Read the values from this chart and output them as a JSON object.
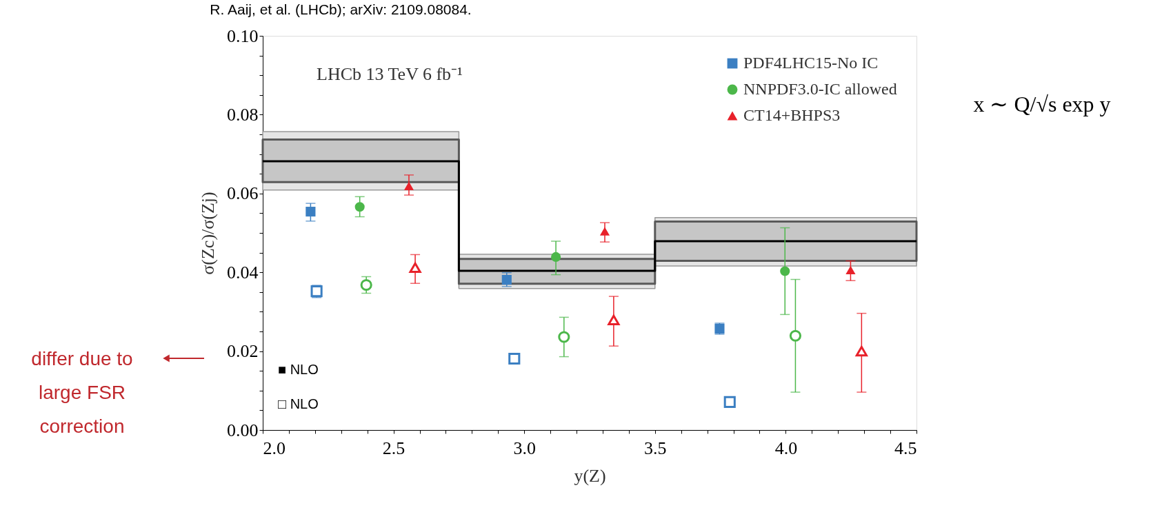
{
  "chart_data": {
    "type": "scatter",
    "title": "R. Aaij, et al. (LHCb); arXiv: 2109.08084.",
    "xlabel": "y(Z)",
    "ylabel": "σ(Zc)/σ(Zj)",
    "xlim": [
      2.0,
      4.5
    ],
    "ylim": [
      0.0,
      0.1
    ],
    "xticks": [
      {
        "value": 2.0,
        "label": "2.0"
      },
      {
        "value": 2.1,
        "label": null
      },
      {
        "value": 2.2,
        "label": null
      },
      {
        "value": 2.3,
        "label": null
      },
      {
        "value": 2.4,
        "label": null
      },
      {
        "value": 2.5,
        "label": "2.5"
      },
      {
        "value": 2.6,
        "label": null
      },
      {
        "value": 2.7,
        "label": null
      },
      {
        "value": 2.8,
        "label": null
      },
      {
        "value": 2.9,
        "label": null
      },
      {
        "value": 3.0,
        "label": "3.0"
      },
      {
        "value": 3.1,
        "label": null
      },
      {
        "value": 3.2,
        "label": null
      },
      {
        "value": 3.3,
        "label": null
      },
      {
        "value": 3.4,
        "label": null
      },
      {
        "value": 3.5,
        "label": "3.5"
      },
      {
        "value": 3.6,
        "label": null
      },
      {
        "value": 3.7,
        "label": null
      },
      {
        "value": 3.8,
        "label": null
      },
      {
        "value": 3.9,
        "label": null
      },
      {
        "value": 4.0,
        "label": "4.0"
      },
      {
        "value": 4.1,
        "label": null
      },
      {
        "value": 4.2,
        "label": null
      },
      {
        "value": 4.3,
        "label": null
      },
      {
        "value": 4.4,
        "label": null
      },
      {
        "value": 4.5,
        "label": "4.5"
      }
    ],
    "yticks": [
      {
        "value": 0.0,
        "label": "0.00"
      },
      {
        "value": 0.005,
        "label": null
      },
      {
        "value": 0.01,
        "label": null
      },
      {
        "value": 0.015,
        "label": null
      },
      {
        "value": 0.02,
        "label": "0.02"
      },
      {
        "value": 0.025,
        "label": null
      },
      {
        "value": 0.03,
        "label": null
      },
      {
        "value": 0.035,
        "label": null
      },
      {
        "value": 0.04,
        "label": "0.04"
      },
      {
        "value": 0.045,
        "label": null
      },
      {
        "value": 0.05,
        "label": null
      },
      {
        "value": 0.055,
        "label": null
      },
      {
        "value": 0.06,
        "label": "0.06"
      },
      {
        "value": 0.065,
        "label": null
      },
      {
        "value": 0.07,
        "label": null
      },
      {
        "value": 0.075,
        "label": null
      },
      {
        "value": 0.08,
        "label": "0.08"
      },
      {
        "value": 0.085,
        "label": null
      },
      {
        "value": 0.09,
        "label": null
      },
      {
        "value": 0.095,
        "label": null
      },
      {
        "value": 0.1,
        "label": "0.10"
      }
    ],
    "grid": false,
    "legend": "top right",
    "series": [
      {
        "type": "step",
        "color": "#999999",
        "x": [
          2.0,
          2.75,
          3.5,
          4.5
        ],
        "values": [
          null,
          null,
          null,
          null
        ],
        "lower": [
          0.0609,
          0.0359,
          0.0416,
          0.0416
        ],
        "upper": [
          0.0757,
          0.0446,
          0.0539,
          0.0539
        ]
      },
      {
        "type": "step",
        "color": "#000000",
        "x": [
          2.0,
          2.75,
          3.5,
          4.5
        ],
        "values": [
          0.0682,
          0.0404,
          0.0479,
          0.0479
        ],
        "lower": [
          0.0629,
          0.0371,
          0.0429,
          0.0429
        ],
        "upper": [
          0.0737,
          0.0434,
          0.0529,
          0.0529
        ]
      },
      {
        "name": "PDF4LHC15-No IC",
        "marker": "square",
        "color": "#3b7fc2",
        "x": [
          2.183,
          2.933,
          3.747
        ],
        "values": [
          0.0554,
          0.0381,
          0.0257
        ],
        "errors": [
          [
            0.053,
            0.0575
          ],
          [
            0.0364,
            0.0399
          ],
          [
            0.0243,
            0.0271
          ]
        ]
      },
      {
        "name": "NNPDF3.0-IC allowed",
        "marker": "circle",
        "color": "#4cb74a",
        "x": [
          2.371,
          3.121,
          3.997
        ],
        "values": [
          0.0566,
          0.0439,
          0.0403
        ],
        "errors": [
          [
            0.0541,
            0.0592
          ],
          [
            0.0394,
            0.0479
          ],
          [
            0.0293,
            0.0513
          ]
        ]
      },
      {
        "name": "CT14+BHPS3",
        "marker": "triangle",
        "color": "#e8212a",
        "x": [
          2.559,
          3.308,
          4.248
        ],
        "values": [
          0.0619,
          0.0504,
          0.0406
        ],
        "errors": [
          [
            0.0596,
            0.0647
          ],
          [
            0.0477,
            0.0526
          ],
          [
            0.0379,
            0.0429
          ]
        ]
      },
      {
        "marker": "square",
        "color": "#3b7fc2",
        "x": [
          2.206,
          2.962,
          3.786
        ],
        "values": [
          0.0352,
          0.0181,
          0.0071
        ],
        "errors": [
          [
            0.0336,
            0.0367
          ],
          null,
          null
        ]
      },
      {
        "marker": "circle",
        "color": "#4cb74a",
        "x": [
          2.396,
          3.152,
          4.037
        ],
        "values": [
          0.0368,
          0.0236,
          0.0239
        ],
        "errors": [
          [
            0.0347,
            0.0389
          ],
          [
            0.0186,
            0.0286
          ],
          [
            0.0096,
            0.0382
          ]
        ]
      },
      {
        "marker": "triangle",
        "color": "#e8212a",
        "x": [
          2.583,
          3.342,
          4.29
        ],
        "values": [
          0.0412,
          0.0279,
          0.02
        ],
        "errors": [
          [
            0.0372,
            0.0445
          ],
          [
            0.0213,
            0.0339
          ],
          [
            0.0096,
            0.0296
          ]
        ]
      }
    ],
    "annotations": [
      "LHCb 13 TeV 6 fb⁻¹",
      "x ∼ Q/√s exp y",
      "differ due to\nlarge FSR\ncorrection",
      "■ NLO",
      "□ NLO"
    ]
  }
}
